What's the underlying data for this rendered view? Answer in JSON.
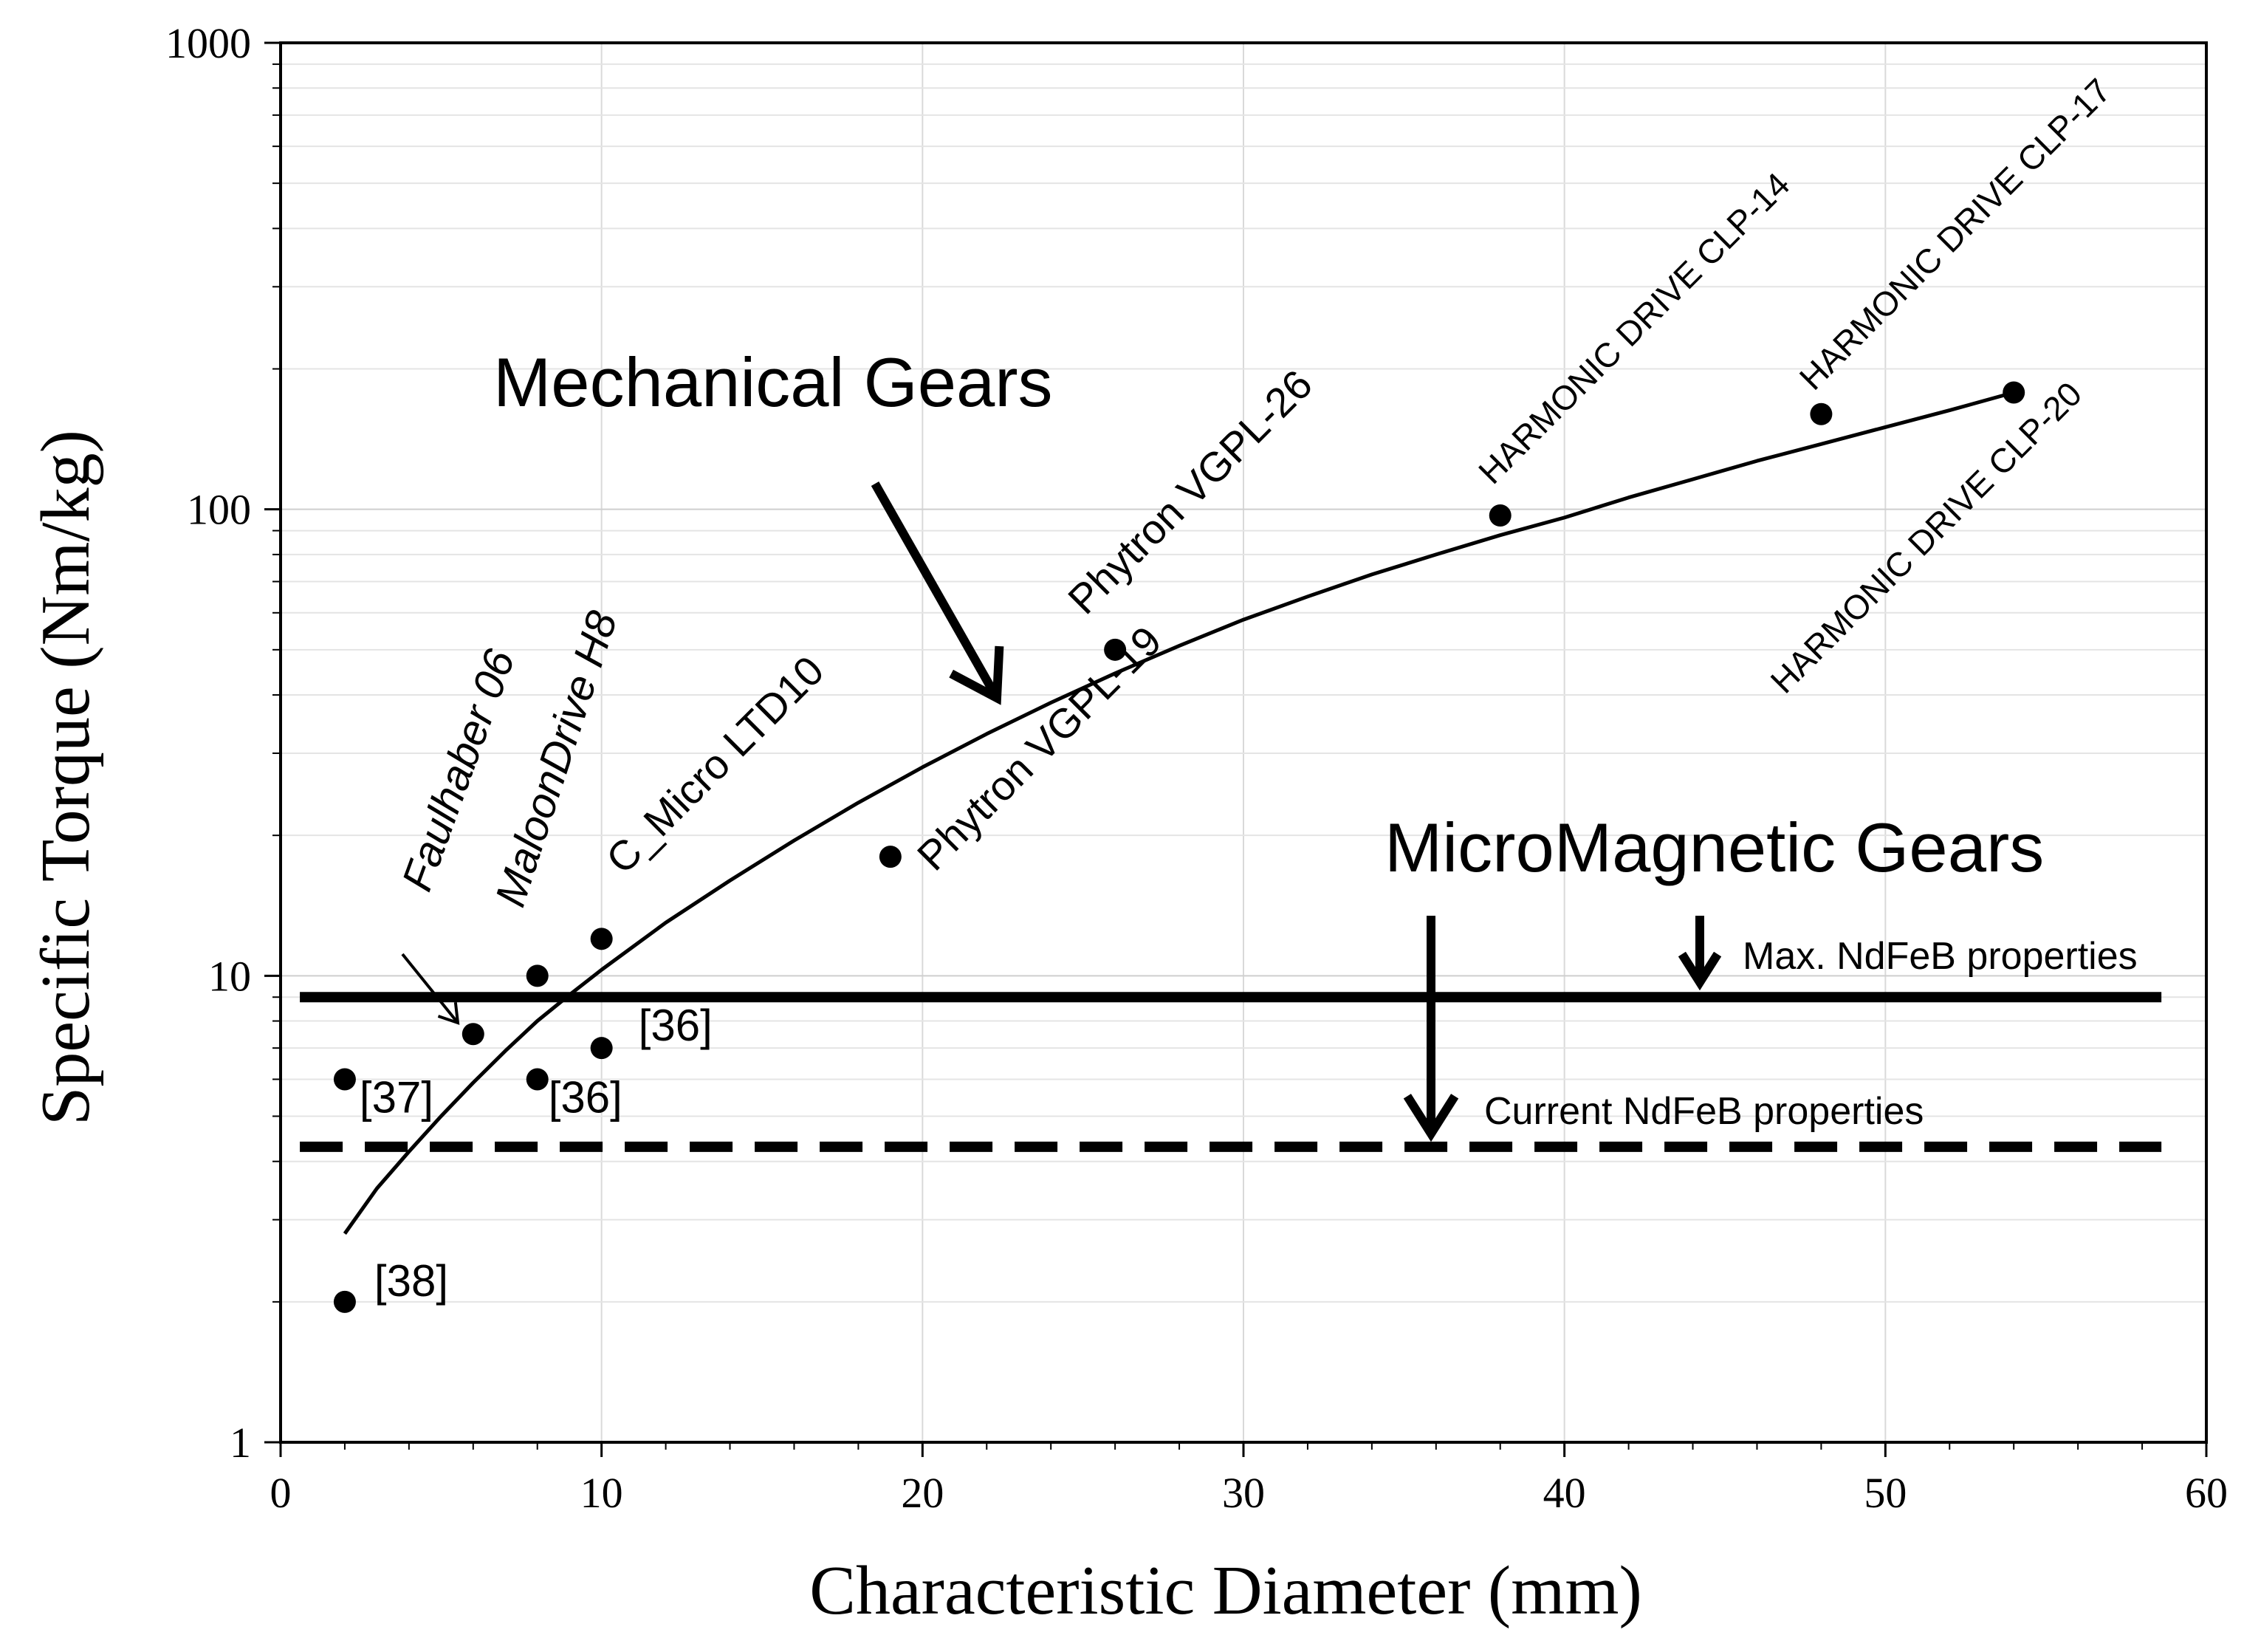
{
  "chart_data": {
    "type": "scatter",
    "xlabel": "Characteristic Diameter (mm)",
    "ylabel": "Specific Torque (Nm/kg)",
    "xlim": [
      0,
      60
    ],
    "ylim": [
      1,
      1000
    ],
    "yscale": "log",
    "grid": true,
    "x_tick_labels": [
      "0",
      "10",
      "20",
      "30",
      "40",
      "50",
      "60"
    ],
    "y_tick_labels": [
      "1",
      "10",
      "100",
      "1000"
    ],
    "points": [
      {
        "x": 2,
        "y": 6,
        "label": "[37]"
      },
      {
        "x": 2,
        "y": 2,
        "label": "[38]"
      },
      {
        "x": 6,
        "y": 7.5,
        "label": "Faulhaber 06"
      },
      {
        "x": 8,
        "y": 10,
        "label": "MaloonDrive H8"
      },
      {
        "x": 8,
        "y": 6,
        "label": "[36]"
      },
      {
        "x": 10,
        "y": 12,
        "label": "C_Micro LTD10"
      },
      {
        "x": 10,
        "y": 7,
        "label": "[36]"
      },
      {
        "x": 19,
        "y": 18,
        "label": "Phytron VGPL-19"
      },
      {
        "x": 26,
        "y": 50,
        "label": "Phytron VGPL-26"
      },
      {
        "x": 38,
        "y": 97,
        "label": "HARMONIC DRIVE CLP-14"
      },
      {
        "x": 48,
        "y": 160,
        "label": "HARMONIC DRIVE CLP-17"
      },
      {
        "x": 54,
        "y": 178,
        "label": "HARMONIC DRIVE CLP-20"
      }
    ],
    "trend_curve": {
      "name": "Mechanical Gears",
      "x": [
        2,
        3,
        4,
        5,
        6,
        7,
        8,
        9,
        10,
        12,
        14,
        16,
        18,
        20,
        22,
        24,
        26,
        28,
        30,
        32,
        34,
        36,
        38,
        40,
        42,
        44,
        46,
        48,
        50,
        52,
        54
      ],
      "y": [
        2.8,
        3.5,
        4.2,
        5.0,
        5.9,
        6.9,
        8.0,
        9.1,
        10.3,
        13.0,
        16.0,
        19.5,
        23.5,
        28.0,
        33.0,
        38.5,
        44.5,
        51.0,
        58.0,
        65.0,
        72.5,
        80.0,
        88.0,
        96.0,
        106.0,
        116.0,
        127.0,
        138.0,
        150.0,
        163.0,
        178.0
      ]
    },
    "reference_lines": [
      {
        "name": "Max. NdFeB properties",
        "y": 9.0,
        "style": "solid"
      },
      {
        "name": "Current NdFeB properties",
        "y": 4.3,
        "style": "dashed"
      }
    ],
    "annotations": {
      "mechanical_title": "Mechanical Gears",
      "magnetic_title": "MicroMagnetic Gears"
    }
  }
}
